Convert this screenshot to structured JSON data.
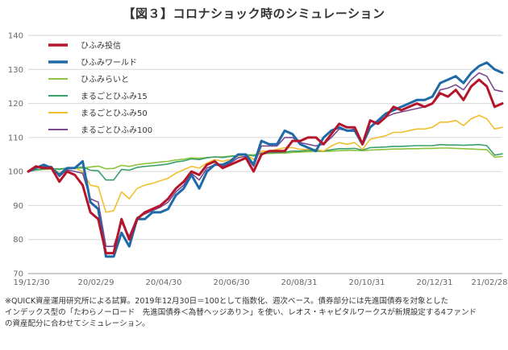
{
  "title": "【図３】コロナショック時のシミュレーション",
  "note": [
    "※QUICK資産運用研究所による試算。2019年12月30日＝100として指数化、週次ベース。債券部分には先進国債券を対象とした",
    "インデックス型の「たわらノーロード　先進国債券＜為替ヘッジあり＞」を使い、レオス・キャピタルワークスが新規設定する4ファンド",
    "の資産配分に合わせてシミュレーション。"
  ],
  "chart_data": {
    "type": "line",
    "ylim": [
      70,
      140
    ],
    "yticks": [
      70,
      80,
      90,
      100,
      110,
      120,
      130,
      140
    ],
    "xlabels": [
      "19/12/30",
      "20/02/29",
      "20/04/30",
      "20/06/30",
      "20/08/31",
      "20/10/31",
      "20/12/31",
      "21/02/28"
    ],
    "grid": "horizontal",
    "legend": "top-left",
    "x": [
      "19/12/30",
      "20/01/06",
      "20/01/13",
      "20/01/20",
      "20/01/27",
      "20/02/03",
      "20/02/10",
      "20/02/17",
      "20/02/24",
      "20/03/02",
      "20/03/09",
      "20/03/16",
      "20/03/23",
      "20/03/30",
      "20/04/06",
      "20/04/13",
      "20/04/20",
      "20/04/27",
      "20/05/04",
      "20/05/11",
      "20/05/18",
      "20/05/25",
      "20/06/01",
      "20/06/08",
      "20/06/15",
      "20/06/22",
      "20/06/29",
      "20/07/06",
      "20/07/13",
      "20/07/20",
      "20/07/27",
      "20/08/03",
      "20/08/10",
      "20/08/17",
      "20/08/24",
      "20/08/31",
      "20/09/07",
      "20/09/14",
      "20/09/21",
      "20/09/28",
      "20/10/05",
      "20/10/12",
      "20/10/19",
      "20/10/26",
      "20/11/02",
      "20/11/09",
      "20/11/16",
      "20/11/23",
      "20/11/30",
      "20/12/07",
      "20/12/14",
      "20/12/21",
      "20/12/28",
      "21/01/04",
      "21/01/11",
      "21/01/18",
      "21/01/25",
      "21/02/01",
      "21/02/08",
      "21/02/15",
      "21/02/22",
      "21/03/01"
    ],
    "series": [
      {
        "name": "ひふみ投信",
        "color": "#b5152b",
        "width": 3,
        "values": [
          100,
          101.5,
          101,
          101,
          97,
          100,
          99,
          96,
          88,
          86,
          76,
          76,
          86,
          80,
          86,
          88,
          89,
          90,
          92,
          95,
          97,
          100,
          99,
          102,
          103,
          101,
          102,
          103,
          104,
          100,
          105,
          106,
          106,
          106,
          109,
          109,
          110,
          110,
          108,
          111,
          114,
          113,
          113,
          108,
          115,
          114,
          116,
          119,
          118,
          119,
          120,
          119,
          120,
          123,
          122,
          124,
          121,
          125,
          127,
          125,
          119,
          120
        ]
      },
      {
        "name": "ひふみワールド",
        "color": "#1e6aa8",
        "width": 3,
        "values": [
          100,
          101,
          102,
          101,
          99,
          101,
          101,
          103,
          91,
          89,
          75,
          75,
          82,
          78,
          86,
          86,
          88,
          88,
          89,
          93,
          95,
          99,
          95,
          100,
          102,
          102,
          103,
          105,
          105,
          102,
          109,
          108,
          108,
          112,
          111,
          108,
          107,
          106,
          110,
          112,
          113,
          112,
          112,
          108,
          113,
          115,
          117,
          118,
          119,
          120,
          121,
          121,
          122,
          126,
          127,
          128,
          126,
          129,
          131,
          132,
          130,
          129
        ]
      },
      {
        "name": "ひふみらいと",
        "color": "#8dc43c",
        "width": 1.6,
        "values": [
          100,
          100.4,
          100.6,
          100.7,
          100.8,
          100.9,
          101,
          101,
          101.3,
          101.6,
          100.8,
          100.9,
          101.8,
          101.5,
          102,
          102.3,
          102.5,
          102.8,
          103,
          103.4,
          103.6,
          104,
          103.9,
          104.1,
          104.3,
          104.3,
          104.5,
          104.7,
          104.9,
          104.9,
          105.2,
          105.3,
          105.4,
          105.4,
          105.6,
          105.7,
          105.8,
          105.9,
          105.9,
          106,
          106.1,
          106.2,
          106.2,
          106.1,
          106.3,
          106.4,
          106.5,
          106.6,
          106.6,
          106.7,
          106.7,
          106.8,
          106.8,
          106.9,
          106.9,
          106.8,
          106.7,
          106.6,
          106.5,
          106.4,
          104.2,
          104.4
        ]
      },
      {
        "name": "まるごとひふみ15",
        "color": "#3aa06a",
        "width": 1.6,
        "values": [
          100,
          100.5,
          100.8,
          100.9,
          100.6,
          101,
          101,
          101.3,
          100.4,
          100.2,
          97.5,
          97.5,
          100.6,
          100.4,
          101.2,
          101.5,
          101.7,
          101.9,
          102.2,
          102.8,
          103.1,
          103.7,
          103.5,
          104,
          104.3,
          104.1,
          104.4,
          104.7,
          104.9,
          104.6,
          105.4,
          105.5,
          105.6,
          105.7,
          106,
          106,
          106.2,
          106.2,
          106,
          106.4,
          106.7,
          106.7,
          106.8,
          106.3,
          107,
          107.1,
          107.2,
          107.4,
          107.4,
          107.5,
          107.6,
          107.6,
          107.6,
          107.9,
          107.8,
          107.8,
          107.7,
          107.8,
          107.9,
          107.6,
          104.8,
          105.2
        ]
      },
      {
        "name": "まるごとひふみ50",
        "color": "#f2be2e",
        "width": 1.6,
        "values": [
          100,
          101,
          101.3,
          101.3,
          99.5,
          101,
          101,
          100,
          96,
          95.5,
          88,
          88.5,
          94,
          92,
          95,
          96,
          96.5,
          97.3,
          98,
          99.5,
          100.5,
          101.5,
          101,
          102.5,
          103.5,
          103,
          103.5,
          104.5,
          105,
          103.5,
          106,
          106,
          106.5,
          107,
          107,
          106.5,
          106.5,
          106.5,
          106,
          107.5,
          108.5,
          108,
          108.5,
          106.5,
          109.5,
          110,
          110.5,
          111.5,
          111.5,
          112,
          112.5,
          112.5,
          113,
          114.5,
          114.5,
          115,
          113.5,
          115.5,
          116.5,
          115.5,
          112.5,
          113
        ]
      },
      {
        "name": "まるごとひふみ100",
        "color": "#7b4a8e",
        "width": 1.6,
        "values": [
          100,
          101.2,
          101.5,
          101.5,
          98.5,
          100.5,
          100,
          99.5,
          92,
          91,
          78,
          78,
          85,
          81,
          86.5,
          87.5,
          88.5,
          89.5,
          91,
          94,
          96,
          99.5,
          97.5,
          101,
          102,
          101.5,
          102.5,
          104,
          104.5,
          101.5,
          107.5,
          107.5,
          107.5,
          110,
          110,
          108.5,
          108,
          107.5,
          108,
          110,
          112.5,
          112,
          112.5,
          108,
          113,
          114.5,
          116,
          117,
          117.5,
          118,
          118.5,
          119,
          120,
          124,
          124.5,
          125.5,
          124,
          127,
          129,
          128,
          124,
          123.5
        ]
      }
    ]
  }
}
